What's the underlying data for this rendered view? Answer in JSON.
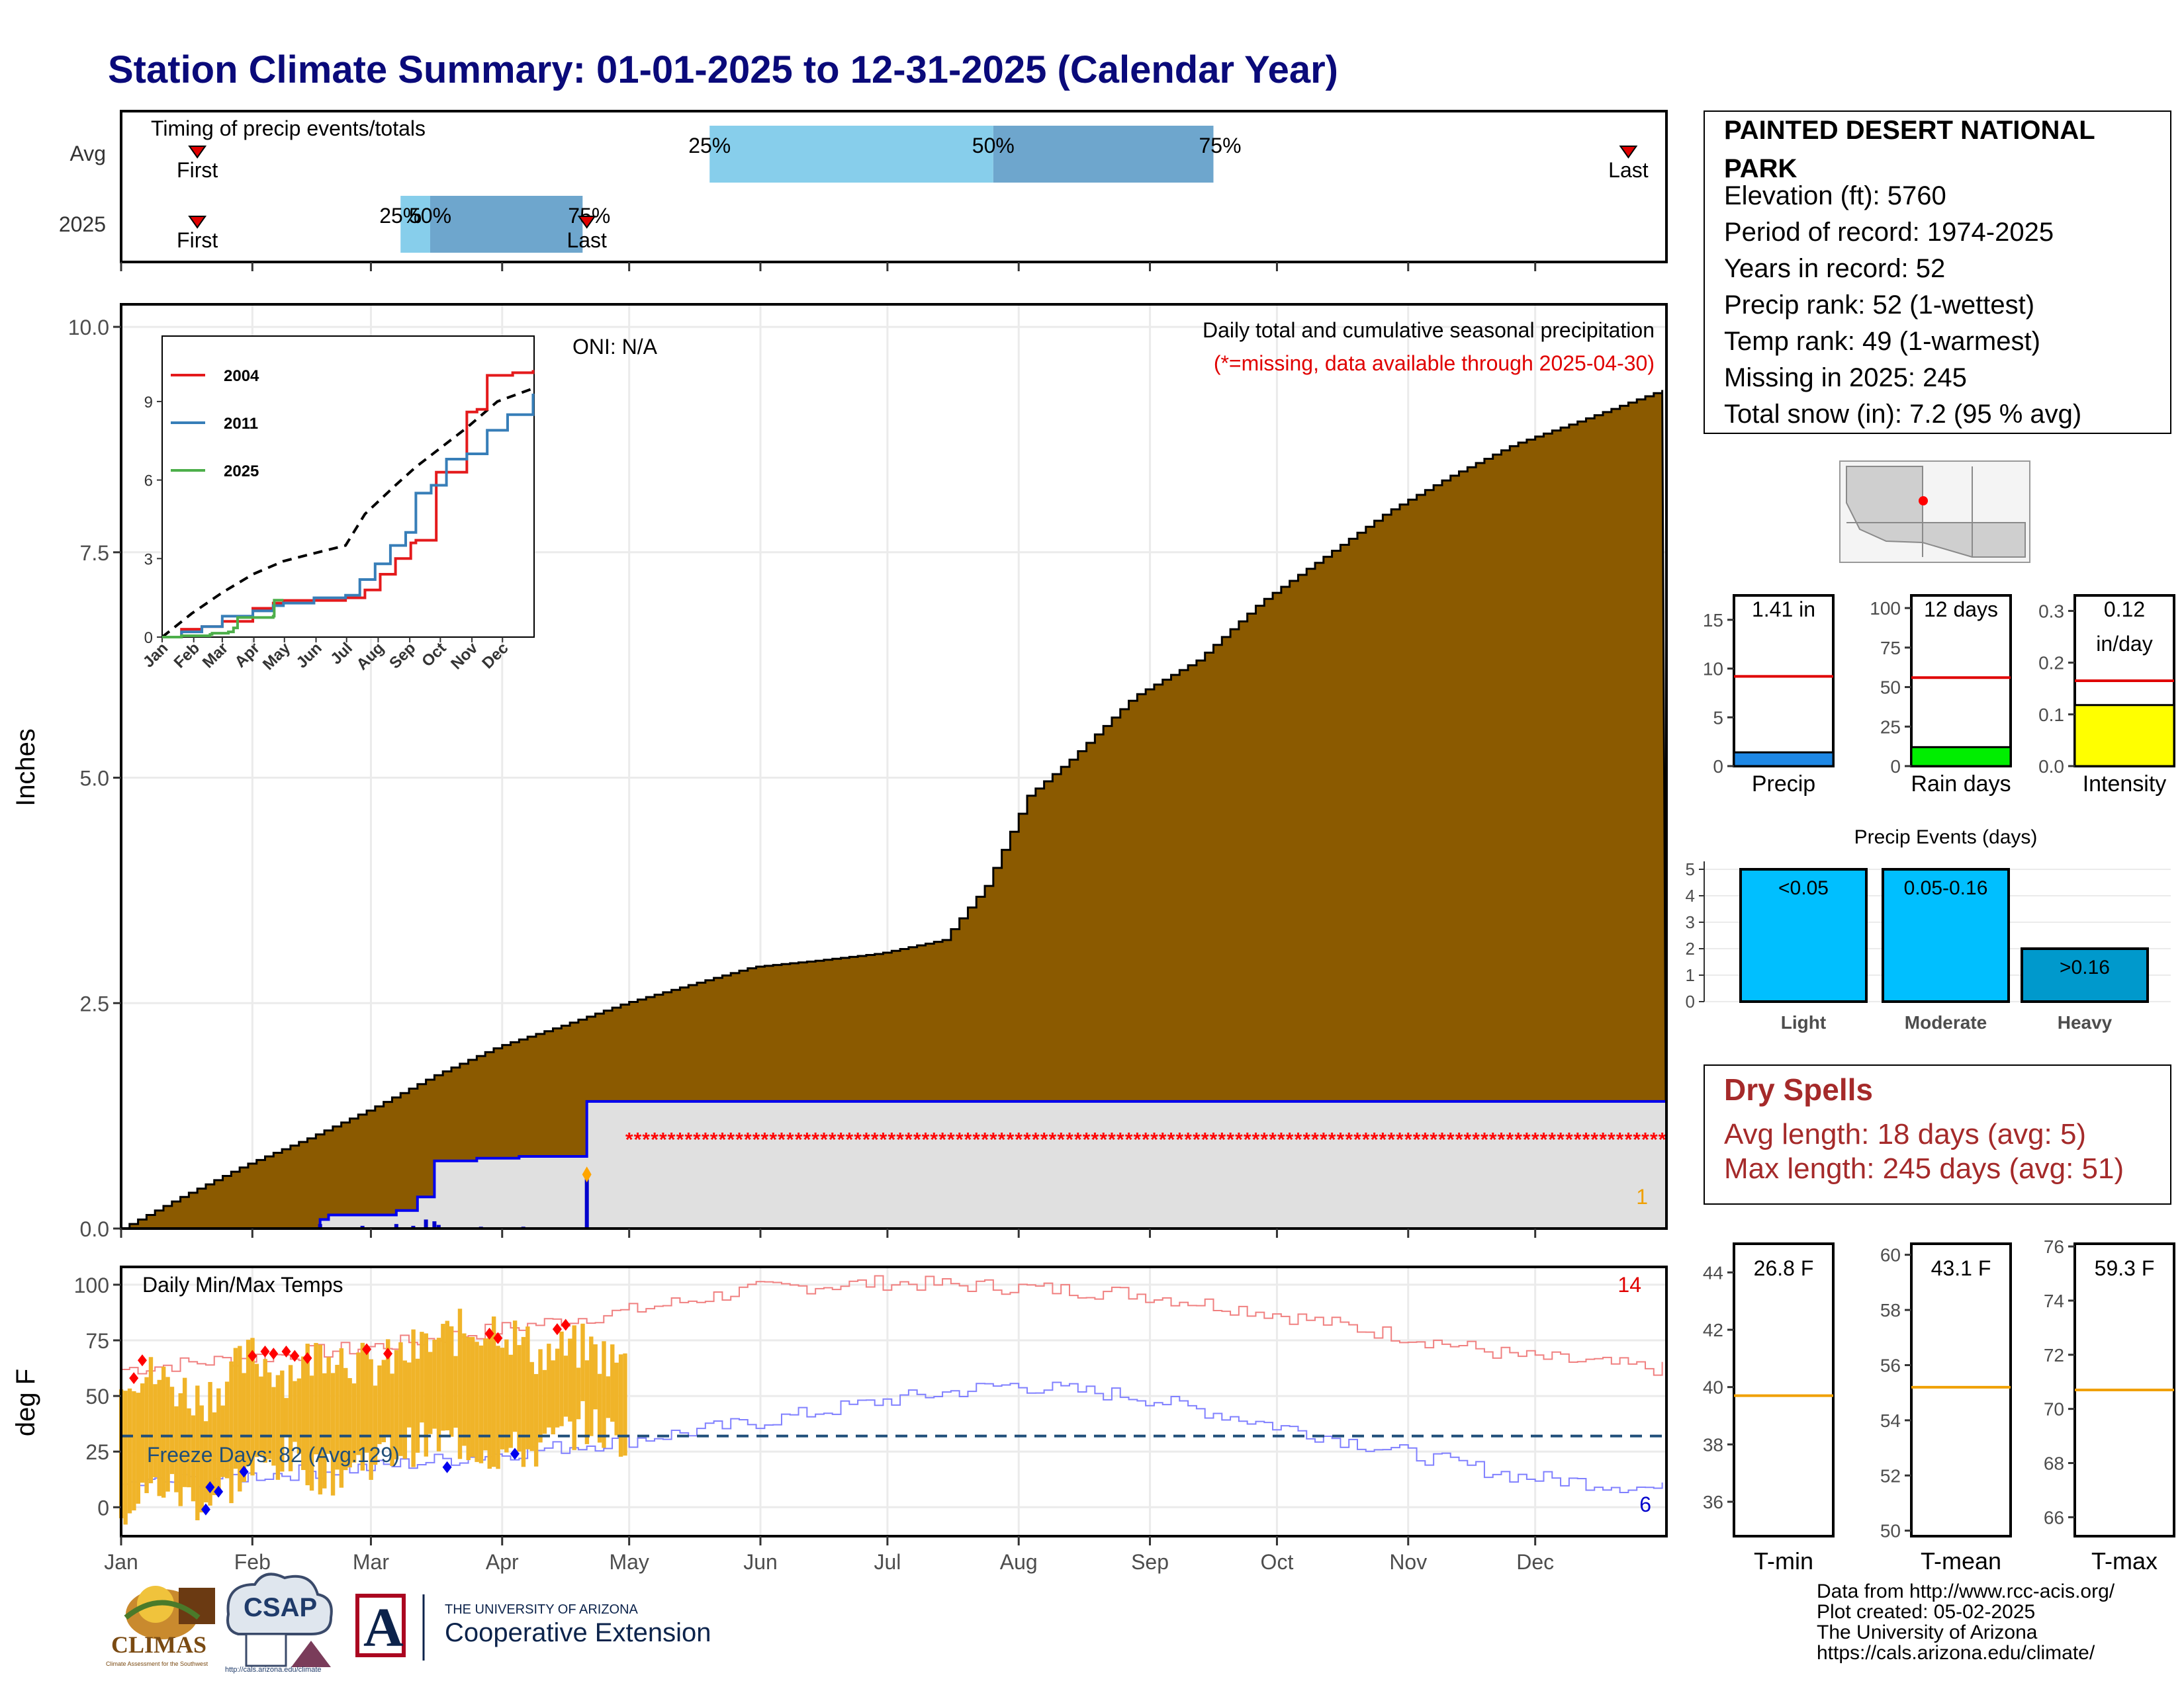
{
  "title": "Station Climate Summary: 01-01-2025 to 12-31-2025 (Calendar Year)",
  "colors": {
    "title": "#0a0a7a",
    "precip_fill": "#8b5a00",
    "current_fill": "#e0e0e0",
    "current_line": "#0000ee",
    "missing": "#ff0000",
    "temp_bar": "#f0b429",
    "temp_max_avg": "#f08080",
    "temp_min_avg": "#8080ff",
    "freeze_line": "#1f4e79",
    "avg_line": "#ff0000",
    "light_blue": "#87ceeb",
    "mid_blue": "#6ea6cd",
    "event_light": "#00bfff",
    "event_heavy": "#0099cc",
    "dry_text": "#a52a2a"
  },
  "timing": {
    "title": "Timing of precip events/totals",
    "rows": [
      "Avg",
      "2025"
    ],
    "first_label": "First",
    "last_label": "Last",
    "pct_labels": [
      "25%",
      "50%",
      "75%"
    ],
    "avg": {
      "first_doy": 19,
      "p25_doy": 140,
      "p50_doy": 207,
      "p75_doy": 259,
      "last_doy": 357
    },
    "y2025": {
      "first_doy": 19,
      "p25_doy": 67,
      "p50_doy": 74,
      "p75_doy": 110,
      "last_doy": 111
    }
  },
  "main": {
    "ylabel": "Inches",
    "title": "Daily total and cumulative seasonal precipitation",
    "subtitle": "(*=missing, data available through 2025-04-30)",
    "oni": "ONI: N/A",
    "count_label": "1",
    "months": [
      "Jan",
      "Feb",
      "Mar",
      "Apr",
      "May",
      "Jun",
      "Jul",
      "Aug",
      "Sep",
      "Oct",
      "Nov",
      "Dec"
    ]
  },
  "inset": {
    "months": [
      "Jan",
      "Feb",
      "Mar",
      "Apr",
      "May",
      "Jun",
      "Jul",
      "Aug",
      "Sep",
      "Oct",
      "Nov",
      "Dec"
    ],
    "legend": [
      {
        "name": "2004",
        "color": "#e41a1c"
      },
      {
        "name": "2011",
        "color": "#377eb8"
      },
      {
        "name": "2025",
        "color": "#4daf4a"
      }
    ]
  },
  "temps": {
    "title": "Daily Min/Max Temps",
    "ylabel": "deg F",
    "freeze_label": "Freeze Days: 82 (Avg:129)",
    "max_count": "14",
    "min_count": "6"
  },
  "station": {
    "name": "PAINTED DESERT NATIONAL PARK",
    "lines": [
      "Elevation (ft): 5760",
      "Period of record: 1974-2025",
      "Years in record: 52",
      "Precip rank: 52 (1-wettest)",
      "Temp rank: 49 (1-warmest)",
      "Missing in 2025: 245",
      "Total snow (in): 7.2 (95 % avg)"
    ]
  },
  "mini_bars": [
    {
      "label": "Precip",
      "value_label": "1.41 in",
      "value": 1.41,
      "avg": 9.2,
      "ymax": 17.5,
      "ticks": [
        0,
        5,
        10,
        15
      ],
      "color": "#1e88e5"
    },
    {
      "label": "Rain days",
      "value_label": "12 days",
      "value": 12,
      "avg": 56,
      "ymax": 108,
      "ticks": [
        0,
        25,
        50,
        75,
        100
      ],
      "color": "#00ee00"
    },
    {
      "label": "Intensity",
      "value_label": "0.12\nin/day",
      "value": 0.118,
      "avg": 0.165,
      "ymax": 0.33,
      "ticks": [
        0.0,
        0.1,
        0.2,
        0.3
      ],
      "color": "#ffff00"
    }
  ],
  "events": {
    "title": "Precip Events (days)",
    "categories": [
      "Light",
      "Moderate",
      "Heavy"
    ],
    "labels": [
      "<0.05",
      "0.05-0.16",
      ">0.16"
    ],
    "values": [
      5,
      5,
      2
    ],
    "ticks": [
      0,
      1,
      2,
      3,
      4,
      5
    ]
  },
  "dry_spells": {
    "title": "Dry Spells",
    "lines": [
      "Avg length: 18 days (avg: 5)",
      "Max length: 245 days (avg: 51)"
    ]
  },
  "temp_boxes": [
    {
      "label": "T-min",
      "value_label": "26.8 F",
      "avg": 39.7,
      "ymin": 34.8,
      "ymax": 45,
      "ticks": [
        36,
        38,
        40,
        42,
        44
      ]
    },
    {
      "label": "T-mean",
      "value_label": "43.1 F",
      "avg": 55.2,
      "ymin": 49.8,
      "ymax": 60.4,
      "ticks": [
        50,
        52,
        54,
        56,
        58,
        60
      ]
    },
    {
      "label": "T-max",
      "value_label": "59.3 F",
      "avg": 70.7,
      "ymin": 65.3,
      "ymax": 76.1,
      "ticks": [
        66,
        68,
        70,
        72,
        74,
        76
      ]
    }
  ],
  "credits": [
    "Data from http://www.rcc-acis.org/",
    "Plot created: 05-02-2025",
    "The University of Arizona",
    "https://cals.arizona.edu/climate/"
  ],
  "logos": {
    "climas": "CLIMAS",
    "climas_sub": "Climate Assessment for the Southwest",
    "csap": "CSAP",
    "csap_url": "http://cals.arizona.edu/climate",
    "ua_letter": "A",
    "ua_line1": "THE UNIVERSITY OF ARIZONA",
    "ua_line2": "Cooperative Extension"
  },
  "chart_data": [
    {
      "type": "area",
      "title": "Daily total and cumulative seasonal precipitation",
      "ylabel": "Inches",
      "ylim": [
        0,
        10.25
      ],
      "yticks": [
        0.0,
        2.5,
        5.0,
        7.5,
        10.0
      ],
      "x_unit": "day of year",
      "series": [
        {
          "name": "average cumulative",
          "x": [
            1,
            15,
            30,
            45,
            60,
            75,
            90,
            105,
            120,
            135,
            150,
            165,
            180,
            195,
            205,
            215,
            225,
            240,
            255,
            270,
            285,
            300,
            315,
            330,
            345,
            365
          ],
          "values": [
            0.0,
            0.35,
            0.7,
            1.0,
            1.33,
            1.7,
            2.02,
            2.25,
            2.5,
            2.7,
            2.9,
            2.97,
            3.05,
            3.2,
            3.8,
            4.8,
            5.2,
            5.9,
            6.3,
            6.95,
            7.45,
            7.95,
            8.35,
            8.7,
            8.95,
            9.3
          ]
        },
        {
          "name": "2025 cumulative",
          "x": [
            1,
            46,
            48,
            50,
            65,
            66,
            70,
            71,
            75,
            82,
            85,
            95,
            100,
            107,
            109,
            110,
            111,
            365
          ],
          "values": [
            0.0,
            0.0,
            0.1,
            0.15,
            0.15,
            0.2,
            0.2,
            0.35,
            0.75,
            0.75,
            0.78,
            0.8,
            0.8,
            0.8,
            0.8,
            0.8,
            1.41,
            1.41
          ]
        },
        {
          "name": "2025 daily",
          "x": [
            48,
            58,
            66,
            70,
            73,
            75,
            76,
            86,
            96,
            111
          ],
          "values": [
            0.05,
            0.03,
            0.05,
            0.03,
            0.1,
            0.08,
            0.04,
            0.02,
            0.02,
            0.6
          ]
        }
      ],
      "missing_from_doy": 121
    },
    {
      "type": "line",
      "title": "",
      "xlabel": "",
      "ylabel": "",
      "ylim": [
        0,
        11.5
      ],
      "yticks": [
        0,
        3,
        6,
        9
      ],
      "series": [
        {
          "name": "average",
          "x": [
            1,
            30,
            60,
            90,
            120,
            150,
            181,
            200,
            230,
            250,
            270,
            300,
            330,
            365
          ],
          "values": [
            0,
            0.9,
            1.7,
            2.4,
            2.9,
            3.2,
            3.5,
            4.7,
            5.8,
            6.5,
            7.1,
            8.0,
            9.0,
            9.5
          ]
        },
        {
          "name": "2004",
          "x": [
            1,
            20,
            40,
            60,
            90,
            110,
            120,
            150,
            181,
            200,
            215,
            230,
            245,
            250,
            270,
            300,
            310,
            320,
            330,
            345,
            365
          ],
          "values": [
            0,
            0.3,
            0.4,
            0.6,
            1.1,
            1.3,
            1.4,
            1.4,
            1.5,
            1.8,
            2.4,
            3.0,
            3.6,
            3.7,
            6.3,
            8.6,
            8.7,
            10.0,
            10.0,
            10.1,
            10.2
          ]
        },
        {
          "name": "2011",
          "x": [
            1,
            20,
            40,
            60,
            90,
            110,
            120,
            150,
            181,
            195,
            210,
            225,
            240,
            250,
            265,
            280,
            300,
            320,
            340,
            365
          ],
          "values": [
            0,
            0.2,
            0.4,
            0.8,
            1.0,
            1.2,
            1.3,
            1.5,
            1.6,
            2.2,
            2.8,
            3.5,
            4.0,
            5.5,
            5.8,
            6.8,
            7.0,
            7.9,
            8.5,
            9.3
          ]
        },
        {
          "name": "2025",
          "x": [
            1,
            20,
            48,
            50,
            66,
            71,
            75,
            110,
            111,
            120
          ],
          "values": [
            0,
            0.05,
            0.1,
            0.15,
            0.2,
            0.35,
            0.75,
            0.8,
            1.41,
            1.41
          ]
        }
      ]
    },
    {
      "type": "line",
      "title": "Daily Min/Max Temps",
      "ylabel": "deg F",
      "ylim": [
        -13,
        108
      ],
      "yticks": [
        0,
        25,
        50,
        75,
        100
      ],
      "freeze_line": 32,
      "series": [
        {
          "name": "average max",
          "x": [
            1,
            30,
            60,
            90,
            120,
            150,
            181,
            210,
            240,
            270,
            300,
            330,
            365
          ],
          "values": [
            62,
            67,
            72,
            80,
            88,
            98,
            101,
            99,
            96,
            88,
            78,
            68,
            62
          ]
        },
        {
          "name": "average min",
          "x": [
            1,
            30,
            60,
            90,
            120,
            150,
            181,
            210,
            240,
            270,
            300,
            330,
            365
          ],
          "values": [
            10,
            14,
            18,
            24,
            30,
            38,
            48,
            55,
            50,
            38,
            26,
            14,
            8
          ]
        },
        {
          "name": "2025 max",
          "x": [
            1,
            10,
            20,
            32,
            40,
            50,
            60,
            70,
            80,
            90,
            100,
            110,
            120
          ],
          "values": [
            62,
            58,
            48,
            68,
            60,
            72,
            62,
            70,
            78,
            82,
            68,
            72,
            64
          ]
        },
        {
          "name": "2025 min",
          "x": [
            1,
            10,
            20,
            32,
            40,
            50,
            60,
            70,
            80,
            90,
            100,
            110,
            120
          ],
          "values": [
            -2,
            10,
            2,
            16,
            22,
            14,
            22,
            28,
            30,
            24,
            26,
            38,
            30
          ]
        }
      ]
    },
    {
      "type": "bar",
      "title": "Precip Events (days)",
      "categories": [
        "Light",
        "Moderate",
        "Heavy"
      ],
      "values": [
        5,
        5,
        2
      ],
      "ylim": [
        0,
        5.3
      ]
    }
  ]
}
